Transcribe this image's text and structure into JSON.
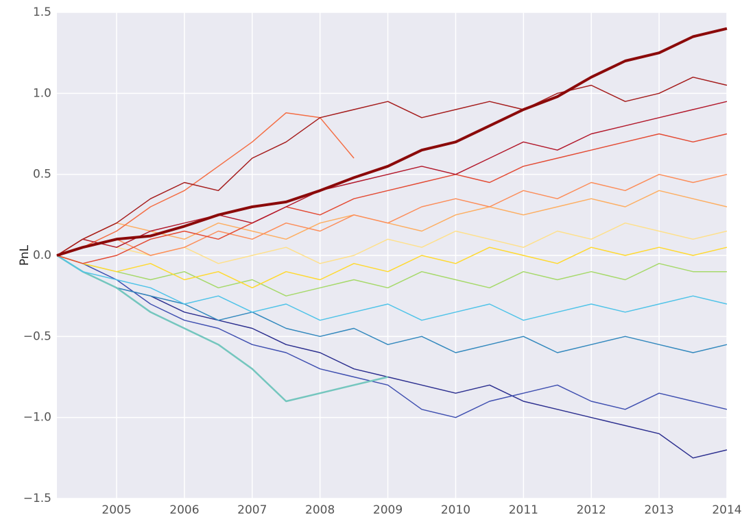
{
  "chart_data": {
    "type": "line",
    "y_label": "PnL",
    "x": [
      2004.12,
      2004.5,
      2005,
      2005.5,
      2006,
      2006.5,
      2007,
      2007.5,
      2008,
      2008.5,
      2009,
      2009.5,
      2010,
      2010.5,
      2011,
      2011.5,
      2012,
      2012.5,
      2013,
      2013.5,
      2014
    ],
    "xlim": [
      2004.12,
      2014
    ],
    "xticks": [
      2005,
      2006,
      2007,
      2008,
      2009,
      2010,
      2011,
      2012,
      2013,
      2014
    ],
    "ylim": [
      -1.5,
      1.5
    ],
    "yticks": [
      {
        "value": -1.5,
        "label": "−1.5"
      },
      {
        "value": -1.0,
        "label": "−1.0"
      },
      {
        "value": -0.5,
        "label": "−0.5"
      },
      {
        "value": 0,
        "label": "0.0"
      },
      0.5,
      {
        "value": 1.0,
        "label": "1.0"
      },
      1.5
    ],
    "grid": true,
    "background": "#eaeaf2",
    "grid_color": "#ffffff",
    "series": [
      {
        "color": "#2c2f8f",
        "linewidth": 1.5,
        "values": [
          0,
          -0.1,
          -0.2,
          -0.25,
          -0.35,
          -0.4,
          -0.45,
          -0.55,
          -0.6,
          -0.7,
          -0.75,
          -0.8,
          -0.85,
          -0.8,
          -0.9,
          -0.95,
          -1.0,
          -1.05,
          -1.1,
          -1.25,
          -1.2
        ]
      },
      {
        "color": "#3f4fb0",
        "linewidth": 1.5,
        "values": [
          0,
          -0.05,
          -0.15,
          -0.3,
          -0.4,
          -0.45,
          -0.55,
          -0.6,
          -0.7,
          -0.75,
          -0.8,
          -0.95,
          -1.0,
          -0.9,
          -0.85,
          -0.8,
          -0.9,
          -0.95,
          -0.85,
          -0.9,
          -0.95
        ]
      },
      {
        "color": "#3288bd",
        "linewidth": 1.5,
        "values": [
          0,
          -0.1,
          -0.2,
          -0.25,
          -0.3,
          -0.4,
          -0.35,
          -0.45,
          -0.5,
          -0.45,
          -0.55,
          -0.5,
          -0.6,
          -0.55,
          -0.5,
          -0.6,
          -0.55,
          -0.5,
          -0.55,
          -0.6,
          -0.55
        ]
      },
      {
        "color": "#74c6be",
        "linewidth": 2.5,
        "values": [
          0,
          -0.1,
          -0.2,
          -0.35,
          -0.45,
          -0.55,
          -0.7,
          -0.9,
          -0.85,
          -0.8,
          -0.75,
          null,
          null,
          null,
          null,
          null,
          null,
          null,
          null,
          null,
          null
        ]
      },
      {
        "color": "#4fc3e8",
        "linewidth": 1.5,
        "values": [
          0,
          -0.1,
          -0.15,
          -0.2,
          -0.3,
          -0.25,
          -0.35,
          -0.3,
          -0.4,
          -0.35,
          -0.3,
          -0.4,
          -0.35,
          -0.3,
          -0.4,
          -0.35,
          -0.3,
          -0.35,
          -0.3,
          -0.25,
          -0.3
        ]
      },
      {
        "color": "#a6d96a",
        "linewidth": 1.5,
        "values": [
          0,
          -0.05,
          -0.1,
          -0.15,
          -0.1,
          -0.2,
          -0.15,
          -0.25,
          -0.2,
          -0.15,
          -0.2,
          -0.1,
          -0.15,
          -0.2,
          -0.1,
          -0.15,
          -0.1,
          -0.15,
          -0.05,
          -0.1,
          -0.1
        ]
      },
      {
        "color": "#ffd92f",
        "linewidth": 1.5,
        "values": [
          0,
          -0.05,
          -0.1,
          -0.05,
          -0.15,
          -0.1,
          -0.2,
          -0.1,
          -0.15,
          -0.05,
          -0.1,
          0,
          -0.05,
          0.05,
          0,
          -0.05,
          0.05,
          0,
          0.05,
          0,
          0.05
        ]
      },
      {
        "color": "#fee08b",
        "linewidth": 1.5,
        "values": [
          0,
          0.1,
          0.05,
          0,
          0.05,
          -0.05,
          0,
          0.05,
          -0.05,
          0,
          0.1,
          0.05,
          0.15,
          0.1,
          0.05,
          0.15,
          0.1,
          0.2,
          0.15,
          0.1,
          0.15
        ]
      },
      {
        "color": "#fdae61",
        "linewidth": 1.5,
        "values": [
          0,
          0.1,
          0.2,
          0.15,
          0.1,
          0.2,
          0.15,
          0.1,
          0.2,
          0.25,
          0.2,
          0.15,
          0.25,
          0.3,
          0.25,
          0.3,
          0.35,
          0.3,
          0.4,
          0.35,
          0.3
        ]
      },
      {
        "color": "#fc8d59",
        "linewidth": 1.5,
        "values": [
          0,
          0.05,
          0.1,
          0,
          0.05,
          0.15,
          0.1,
          0.2,
          0.15,
          0.25,
          0.2,
          0.3,
          0.35,
          0.3,
          0.4,
          0.35,
          0.45,
          0.4,
          0.5,
          0.45,
          0.5
        ]
      },
      {
        "color": "#f46d43",
        "linewidth": 1.5,
        "values": [
          0,
          0.05,
          0.15,
          0.3,
          0.4,
          0.55,
          0.7,
          0.88,
          0.85,
          0.6,
          null,
          null,
          null,
          null,
          null,
          null,
          null,
          null,
          null,
          null,
          null
        ]
      },
      {
        "color": "#e34a33",
        "linewidth": 1.5,
        "values": [
          0,
          -0.05,
          0,
          0.1,
          0.15,
          0.1,
          0.2,
          0.3,
          0.25,
          0.35,
          0.4,
          0.45,
          0.5,
          0.45,
          0.55,
          0.6,
          0.65,
          0.7,
          0.75,
          0.7,
          0.75
        ]
      },
      {
        "color": "#b2182b",
        "linewidth": 1.5,
        "values": [
          0,
          0.1,
          0.05,
          0.15,
          0.2,
          0.25,
          0.2,
          0.3,
          0.4,
          0.45,
          0.5,
          0.55,
          0.5,
          0.6,
          0.7,
          0.65,
          0.75,
          0.8,
          0.85,
          0.9,
          0.95
        ]
      },
      {
        "color": "#a51c1c",
        "linewidth": 1.5,
        "values": [
          0,
          0.1,
          0.2,
          0.35,
          0.45,
          0.4,
          0.6,
          0.7,
          0.85,
          0.9,
          0.95,
          0.85,
          0.9,
          0.95,
          0.9,
          1.0,
          1.05,
          0.95,
          1.0,
          1.1,
          1.05
        ]
      },
      {
        "color": "#8b0a0a",
        "linewidth": 4,
        "values": [
          0,
          0.05,
          0.1,
          0.12,
          0.18,
          0.25,
          0.3,
          0.33,
          0.4,
          0.48,
          0.55,
          0.65,
          0.7,
          0.8,
          0.9,
          0.98,
          1.1,
          1.2,
          1.25,
          1.35,
          1.4
        ]
      }
    ]
  }
}
